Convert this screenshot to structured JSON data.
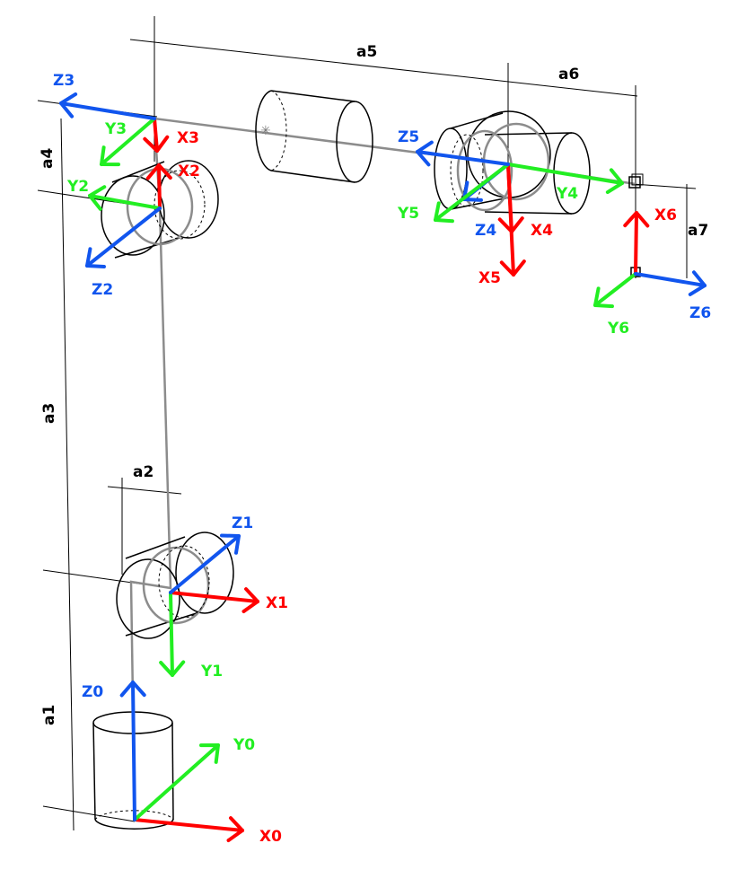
{
  "colors": {
    "x_axis": "#ff0000",
    "y_axis": "#22ee22",
    "z_axis": "#1155ee",
    "link": "#8c8c8c"
  },
  "dimensions": {
    "a1": "a1",
    "a2": "a2",
    "a3": "a3",
    "a4": "a4",
    "a5": "a5",
    "a6": "a6",
    "a7": "a7"
  },
  "frames": [
    {
      "x": "X0",
      "y": "Y0",
      "z": "Z0"
    },
    {
      "x": "X1",
      "y": "Y1",
      "z": "Z1"
    },
    {
      "x": "X2",
      "y": "Y2",
      "z": "Z2"
    },
    {
      "x": "X3",
      "y": "Y3",
      "z": "Z3"
    },
    {
      "x": "X4",
      "y": "Y4",
      "z": "Z4"
    },
    {
      "x": "X5",
      "y": "Y5",
      "z": "Z5"
    },
    {
      "x": "X6",
      "y": "Y6",
      "z": "Z6"
    }
  ]
}
